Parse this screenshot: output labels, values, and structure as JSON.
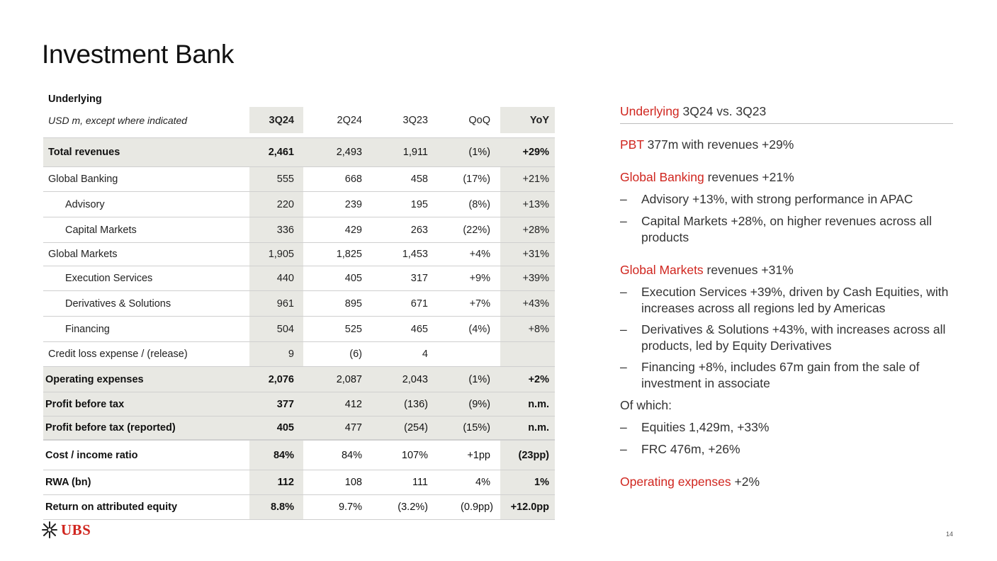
{
  "page": {
    "title": "Investment Bank",
    "page_number": "14"
  },
  "logo": {
    "text": "UBS"
  },
  "table": {
    "section_label": "Underlying",
    "unit_note": "USD m, except where indicated",
    "columns": [
      "3Q24",
      "2Q24",
      "3Q23",
      "QoQ",
      "YoY"
    ],
    "rows": [
      {
        "label": "Total revenues",
        "values": [
          "2,461",
          "2,493",
          "1,911",
          "(1%)",
          "+29%"
        ]
      },
      {
        "label": "Global Banking",
        "values": [
          "555",
          "668",
          "458",
          "(17%)",
          "+21%"
        ]
      },
      {
        "label": "Advisory",
        "values": [
          "220",
          "239",
          "195",
          "(8%)",
          "+13%"
        ]
      },
      {
        "label": "Capital Markets",
        "values": [
          "336",
          "429",
          "263",
          "(22%)",
          "+28%"
        ]
      },
      {
        "label": "Global Markets",
        "values": [
          "1,905",
          "1,825",
          "1,453",
          "+4%",
          "+31%"
        ]
      },
      {
        "label": "Execution Services",
        "values": [
          "440",
          "405",
          "317",
          "+9%",
          "+39%"
        ]
      },
      {
        "label": "Derivatives & Solutions",
        "values": [
          "961",
          "895",
          "671",
          "+7%",
          "+43%"
        ]
      },
      {
        "label": "Financing",
        "values": [
          "504",
          "525",
          "465",
          "(4%)",
          "+8%"
        ]
      },
      {
        "label": "Credit loss expense / (release)",
        "values": [
          "9",
          "(6)",
          "4",
          "",
          ""
        ]
      },
      {
        "label": "Operating expenses",
        "values": [
          "2,076",
          "2,087",
          "2,043",
          "(1%)",
          "+2%"
        ]
      },
      {
        "label": "Profit before tax",
        "values": [
          "377",
          "412",
          "(136)",
          "(9%)",
          "n.m."
        ]
      },
      {
        "label": "Profit before tax (reported)",
        "values": [
          "405",
          "477",
          "(254)",
          "(15%)",
          "n.m."
        ]
      },
      {
        "label": "Cost / income ratio",
        "values": [
          "84%",
          "84%",
          "107%",
          "+1pp",
          "(23pp)"
        ]
      },
      {
        "label": "RWA (bn)",
        "values": [
          "112",
          "108",
          "111",
          "4%",
          "1%"
        ]
      },
      {
        "label": "Return on attributed equity",
        "values": [
          "8.8%",
          "9.7%",
          "(3.2%)",
          "(0.9pp)",
          "+12.0pp"
        ]
      }
    ]
  },
  "commentary": {
    "header": {
      "red": "Underlying",
      "rest": " 3Q24 vs. 3Q23"
    },
    "pbt": {
      "red": "PBT",
      "rest": " 377m with revenues +29%"
    },
    "gb": {
      "red": "Global Banking",
      "rest": " revenues +21%"
    },
    "gb_bullets": [
      "Advisory +13%, with strong performance in APAC",
      "Capital Markets +28%, on higher revenues across all products"
    ],
    "gm": {
      "red": "Global Markets",
      "rest": " revenues +31%"
    },
    "gm_bullets": [
      "Execution Services +39%, driven by Cash Equities, with increases across all regions led by Americas",
      "Derivatives & Solutions +43%, with increases across all products, led by Equity Derivatives",
      "Financing +8%, includes 67m gain from the sale of investment in associate"
    ],
    "of_which": "Of which:",
    "of_which_bullets": [
      "Equities 1,429m, +33%",
      "FRC 476m, +26%"
    ],
    "opex": {
      "red": "Operating expenses",
      "rest": " +2%"
    },
    "dash": "–"
  },
  "colors": {
    "accent_red": "#d0261f",
    "shade": "#e8e8e3"
  }
}
